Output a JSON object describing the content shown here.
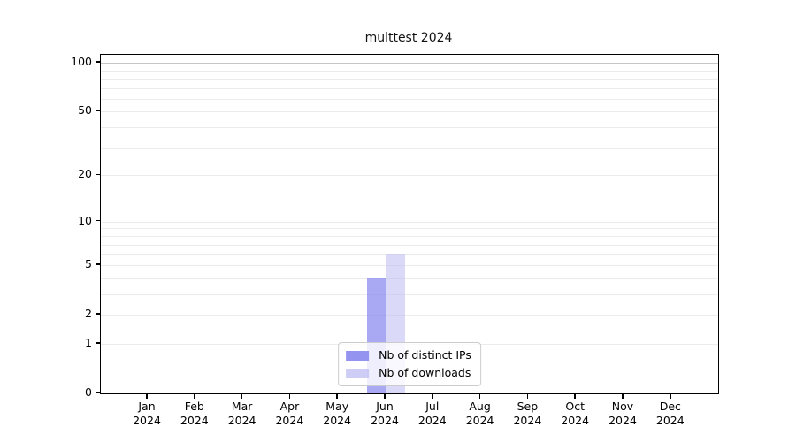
{
  "figure": {
    "title": "multtest 2024"
  },
  "chart_data": {
    "type": "bar",
    "title": "multtest 2024",
    "x_months": [
      "Jan",
      "Feb",
      "Mar",
      "Apr",
      "May",
      "Jun",
      "Jul",
      "Aug",
      "Sep",
      "Oct",
      "Nov",
      "Dec"
    ],
    "x_year": "2024",
    "series": [
      {
        "name": "Nb of distinct IPs",
        "color": "#8888ee",
        "alpha": 0.72,
        "values": [
          0,
          0,
          0,
          0,
          0,
          4,
          0,
          0,
          0,
          0,
          0,
          0
        ]
      },
      {
        "name": "Nb of downloads",
        "color": "#bbbbf2",
        "alpha": 0.55,
        "values": [
          0,
          0,
          0,
          0,
          0,
          6,
          0,
          0,
          0,
          0,
          0,
          0
        ]
      }
    ],
    "xlabel": "",
    "ylabel": "",
    "yscale": "log1p",
    "ylim": [
      0,
      112
    ],
    "yticks": [
      0,
      1,
      2,
      5,
      10,
      20,
      50,
      100
    ],
    "minor_gridlines": [
      1,
      2,
      3,
      4,
      5,
      6,
      7,
      8,
      9,
      10,
      20,
      30,
      40,
      50,
      60,
      70,
      80,
      90
    ],
    "major_gridlines": [
      100
    ],
    "grid_color": "#ececec",
    "major_grid_color": "#c6c6c6",
    "legend_position": "lower center",
    "background_color": "#ffffff"
  }
}
